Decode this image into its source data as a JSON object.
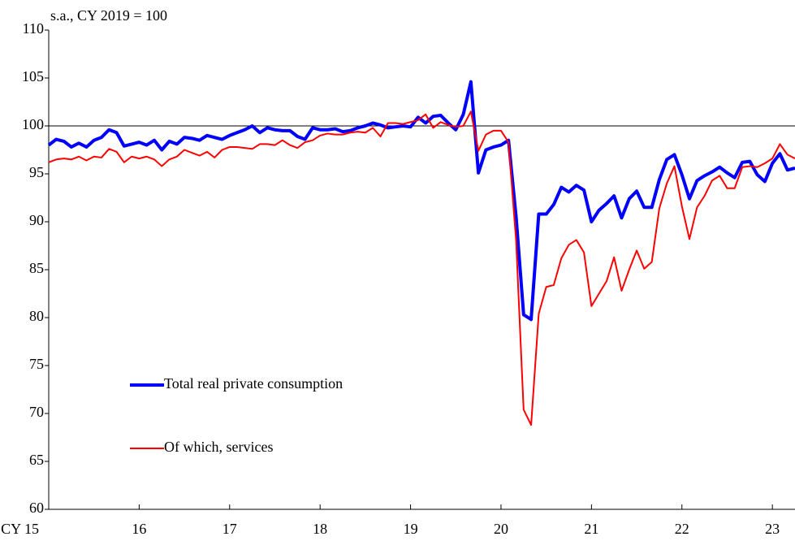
{
  "chart_data": {
    "type": "line",
    "ylabel": "s.a., CY 2019 = 100",
    "x": [
      15,
      15.083,
      15.167,
      15.25,
      15.333,
      15.417,
      15.5,
      15.583,
      15.667,
      15.75,
      15.833,
      15.917,
      16,
      16.083,
      16.167,
      16.25,
      16.333,
      16.417,
      16.5,
      16.583,
      16.667,
      16.75,
      16.833,
      16.917,
      17,
      17.083,
      17.167,
      17.25,
      17.333,
      17.417,
      17.5,
      17.583,
      17.667,
      17.75,
      17.833,
      17.917,
      18,
      18.083,
      18.167,
      18.25,
      18.333,
      18.417,
      18.5,
      18.583,
      18.667,
      18.75,
      18.833,
      18.917,
      19,
      19.083,
      19.167,
      19.25,
      19.333,
      19.417,
      19.5,
      19.583,
      19.667,
      19.75,
      19.833,
      19.917,
      20,
      20.083,
      20.167,
      20.25,
      20.333,
      20.417,
      20.5,
      20.583,
      20.667,
      20.75,
      20.833,
      20.917,
      21,
      21.083,
      21.167,
      21.25,
      21.333,
      21.417,
      21.5,
      21.583,
      21.667,
      21.75,
      21.833,
      21.917,
      22,
      22.083,
      22.167,
      22.25,
      22.333,
      22.417,
      22.5,
      22.583,
      22.667,
      22.75,
      22.833,
      22.917,
      23,
      23.083,
      23.167,
      23.25
    ],
    "series": [
      {
        "name": "Total real private consumption",
        "color": "#0000ff",
        "values": [
          98.0,
          98.6,
          98.4,
          97.8,
          98.2,
          97.8,
          98.5,
          98.8,
          99.6,
          99.3,
          97.9,
          98.1,
          98.3,
          98.0,
          98.5,
          97.5,
          98.4,
          98.1,
          98.8,
          98.7,
          98.5,
          99.0,
          98.8,
          98.6,
          99.0,
          99.3,
          99.6,
          100.0,
          99.3,
          99.8,
          99.6,
          99.5,
          99.5,
          98.9,
          98.6,
          99.8,
          99.6,
          99.6,
          99.7,
          99.4,
          99.5,
          99.8,
          100.0,
          100.3,
          100.1,
          99.8,
          99.9,
          100.0,
          99.9,
          100.9,
          100.3,
          101.0,
          101.1,
          100.3,
          99.6,
          101.2,
          104.6,
          95.1,
          97.5,
          97.8,
          98.0,
          98.5,
          90.5,
          80.3,
          79.8,
          90.8,
          90.8,
          91.8,
          93.6,
          93.1,
          93.8,
          93.3,
          90.0,
          91.2,
          91.9,
          92.7,
          90.4,
          92.4,
          93.2,
          91.5,
          91.5,
          94.4,
          96.5,
          97.0,
          94.9,
          92.4,
          94.3,
          94.8,
          95.2,
          95.7,
          95.1,
          94.6,
          96.2,
          96.3,
          94.9,
          94.2,
          96.1,
          97.1,
          95.4,
          95.6
        ]
      },
      {
        "name": "Of which, services",
        "color": "#ff0000",
        "values": [
          96.2,
          96.5,
          96.6,
          96.5,
          96.8,
          96.4,
          96.8,
          96.7,
          97.6,
          97.3,
          96.2,
          96.8,
          96.6,
          96.8,
          96.5,
          95.8,
          96.5,
          96.8,
          97.5,
          97.2,
          96.9,
          97.3,
          96.7,
          97.5,
          97.8,
          97.8,
          97.7,
          97.6,
          98.1,
          98.1,
          98.0,
          98.5,
          98.0,
          97.7,
          98.3,
          98.5,
          99.0,
          99.2,
          99.1,
          99.1,
          99.3,
          99.4,
          99.3,
          99.8,
          98.9,
          100.3,
          100.3,
          100.2,
          100.4,
          100.6,
          101.2,
          99.8,
          100.4,
          100.1,
          99.9,
          100.0,
          101.5,
          97.4,
          99.1,
          99.5,
          99.5,
          98.3,
          88.0,
          70.4,
          68.8,
          80.4,
          83.2,
          83.4,
          86.2,
          87.6,
          88.1,
          86.8,
          81.2,
          82.5,
          83.8,
          86.3,
          82.8,
          85.0,
          87.0,
          85.1,
          85.8,
          91.4,
          94.0,
          95.8,
          91.6,
          88.2,
          91.5,
          92.7,
          94.3,
          94.8,
          93.5,
          93.5,
          95.7,
          95.8,
          95.7,
          96.1,
          96.6,
          98.1,
          97.0,
          96.6
        ]
      }
    ],
    "reference_line": 100,
    "xlim": [
      15,
      23.25
    ],
    "ylim": [
      60,
      110
    ],
    "xticks": [
      {
        "value": 15,
        "label": "CY 15"
      },
      16,
      17,
      18,
      19,
      20,
      21,
      22,
      23
    ],
    "yticks": [
      60,
      65,
      70,
      75,
      80,
      85,
      90,
      95,
      100,
      105,
      110
    ],
    "legend": "lower-left",
    "grid": false
  }
}
